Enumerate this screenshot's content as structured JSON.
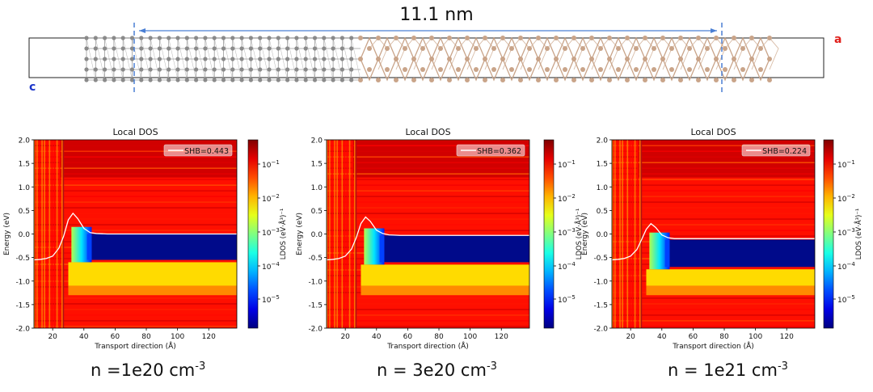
{
  "structure": {
    "length_label": "11.1 nm",
    "axis_a": "a",
    "axis_c": "c",
    "colors": {
      "metal": "#8a8a8a",
      "semiconductor": "#c9a489",
      "dim_line": "#4a7fd4",
      "axis_a": "#e0201b",
      "axis_c": "#1b35c9"
    }
  },
  "colorbar_ticks": [
    {
      "label": "10",
      "exp": "−1"
    },
    {
      "label": "10",
      "exp": "−2"
    },
    {
      "label": "10",
      "exp": "−3"
    },
    {
      "label": "10",
      "exp": "−4"
    },
    {
      "label": "10",
      "exp": "−5"
    }
  ],
  "colorbar_label": "LDOS (eV·Å³)⁻¹",
  "chart_data": [
    {
      "type": "heatmap",
      "title": "Local DOS",
      "xlabel": "Transport direction (Å)",
      "ylabel": "Energy (eV)",
      "xlim": [
        8,
        138
      ],
      "ylim": [
        -2.0,
        2.0
      ],
      "x_ticks": [
        20,
        40,
        60,
        80,
        100,
        120
      ],
      "y_ticks": [
        -2.0,
        -1.5,
        -1.0,
        -0.5,
        0.0,
        0.5,
        1.0,
        1.5,
        2.0
      ],
      "colorbar": {
        "scale": "log",
        "range": [
          1e-06,
          0.5
        ],
        "colormap": "jet"
      },
      "legend": {
        "label": "SHB=0.443",
        "location": "upper right"
      },
      "barrier_curve": {
        "x": [
          8,
          12,
          16,
          20,
          24,
          27,
          30,
          33,
          36,
          40,
          44,
          48,
          55,
          70,
          100,
          138
        ],
        "y": [
          -0.55,
          -0.54,
          -0.52,
          -0.47,
          -0.3,
          -0.05,
          0.3,
          0.44,
          0.33,
          0.12,
          0.03,
          0.01,
          0.0,
          0.0,
          0.0,
          0.0
        ]
      },
      "gap_region": {
        "x_start": 45,
        "top": 0.0,
        "bottom": -0.55
      },
      "caption": {
        "prefix": "n =1e20 cm",
        "exp": "-3"
      }
    },
    {
      "type": "heatmap",
      "title": "Local DOS",
      "xlabel": "Transport direction (Å)",
      "ylabel": "Energy (eV)",
      "xlim": [
        8,
        138
      ],
      "ylim": [
        -2.0,
        2.0
      ],
      "x_ticks": [
        20,
        40,
        60,
        80,
        100,
        120
      ],
      "y_ticks": [
        -2.0,
        -1.5,
        -1.0,
        -0.5,
        0.0,
        0.5,
        1.0,
        1.5,
        2.0
      ],
      "colorbar": {
        "scale": "log",
        "range": [
          1e-06,
          0.5
        ],
        "colormap": "jet"
      },
      "legend": {
        "label": "SHB=0.362",
        "location": "upper right"
      },
      "barrier_curve": {
        "x": [
          8,
          12,
          16,
          20,
          24,
          27,
          30,
          33,
          36,
          40,
          44,
          48,
          55,
          70,
          100,
          138
        ],
        "y": [
          -0.55,
          -0.54,
          -0.52,
          -0.47,
          -0.32,
          -0.08,
          0.22,
          0.36,
          0.27,
          0.08,
          0.01,
          -0.02,
          -0.03,
          -0.03,
          -0.03,
          -0.03
        ]
      },
      "gap_region": {
        "x_start": 45,
        "top": -0.03,
        "bottom": -0.6
      },
      "caption": {
        "prefix": "n = 3e20 cm",
        "exp": "-3"
      }
    },
    {
      "type": "heatmap",
      "title": "Local DOS",
      "xlabel": "Transport direction (Å)",
      "ylabel": "Energy (eV)",
      "xlim": [
        8,
        138
      ],
      "ylim": [
        -2.0,
        2.0
      ],
      "x_ticks": [
        20,
        40,
        60,
        80,
        100,
        120
      ],
      "y_ticks": [
        -2.0,
        -1.5,
        -1.0,
        -0.5,
        0.0,
        0.5,
        1.0,
        1.5,
        2.0
      ],
      "colorbar": {
        "scale": "log",
        "range": [
          1e-06,
          0.5
        ],
        "colormap": "jet"
      },
      "legend": {
        "label": "SHB=0.224",
        "location": "upper right"
      },
      "barrier_curve": {
        "x": [
          8,
          12,
          16,
          20,
          24,
          27,
          30,
          33,
          36,
          40,
          44,
          48,
          55,
          70,
          100,
          138
        ],
        "y": [
          -0.55,
          -0.54,
          -0.52,
          -0.47,
          -0.33,
          -0.12,
          0.1,
          0.22,
          0.14,
          -0.02,
          -0.08,
          -0.1,
          -0.1,
          -0.1,
          -0.1,
          -0.1
        ]
      },
      "gap_region": {
        "x_start": 45,
        "top": -0.12,
        "bottom": -0.7
      },
      "caption": {
        "prefix": "n = 1e21 cm",
        "exp": "-3"
      }
    }
  ]
}
